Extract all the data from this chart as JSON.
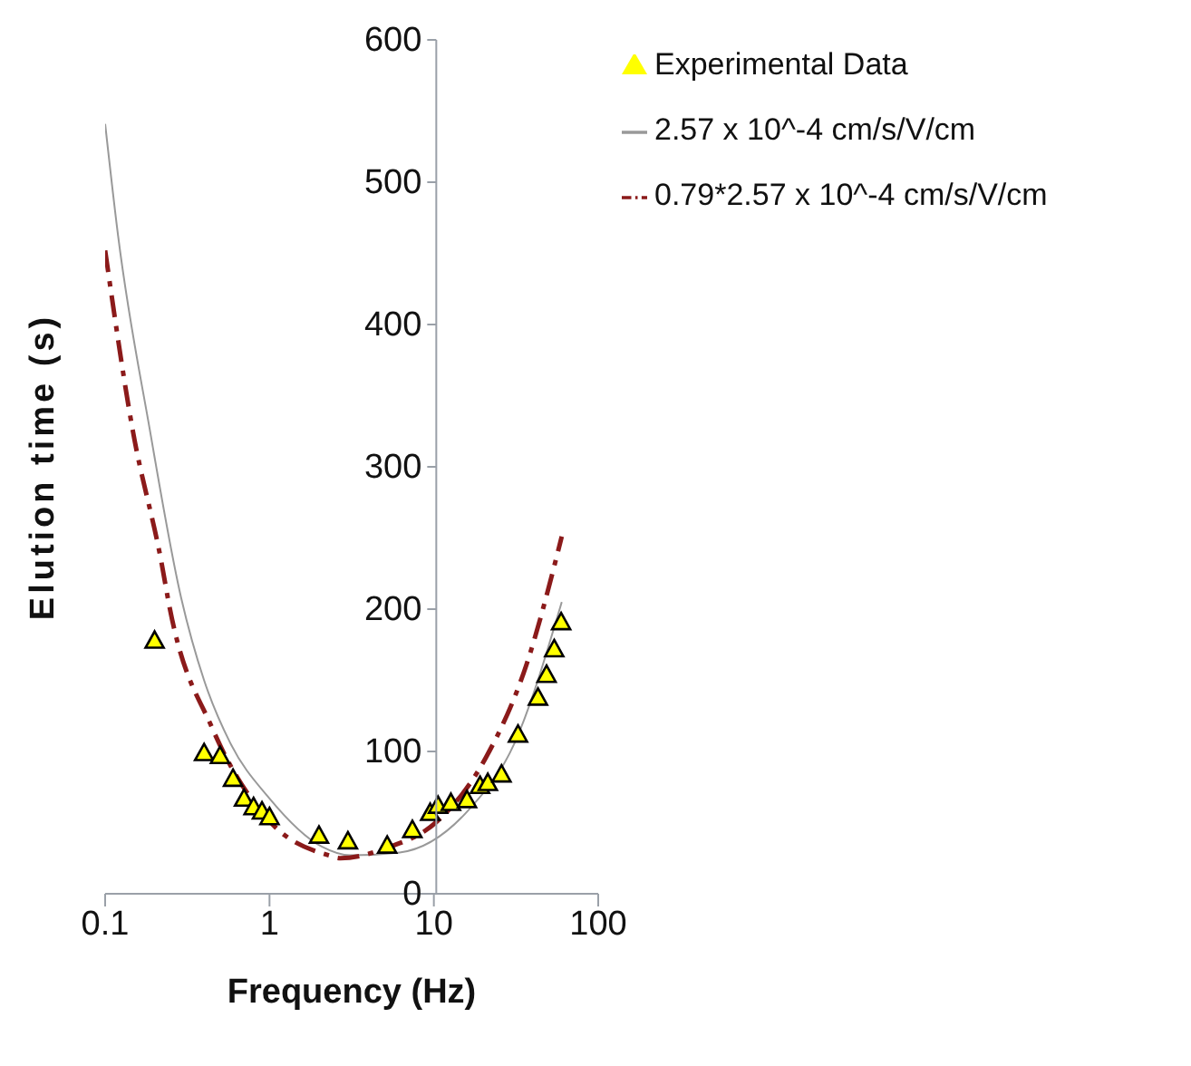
{
  "chart_data": {
    "type": "scatter",
    "xlabel": "Frequency (Hz)",
    "ylabel": "Elution time (s)",
    "log": "x",
    "xlim": [
      0.1,
      100
    ],
    "xticks": [
      0.1,
      1,
      10,
      100
    ],
    "ylim": [
      0,
      600
    ],
    "yticks": [
      0,
      100,
      200,
      300,
      400,
      500,
      600
    ],
    "legend": "top right",
    "series": [
      {
        "name": "Experimental Data",
        "marker": "triangle",
        "color": "#ffff00",
        "x": [
          0.2,
          0.4,
          0.5,
          0.6,
          0.7,
          0.8,
          0.9,
          1,
          2,
          3,
          5.2,
          7.4,
          9.5,
          10.6,
          12.7,
          15.9,
          19.1,
          21.3,
          25.8,
          32.5,
          43,
          48.5,
          54,
          59.5
        ],
        "values": [
          178,
          99,
          97,
          81,
          67,
          61,
          58,
          54,
          41,
          37,
          34,
          45,
          57,
          62,
          64,
          66,
          76,
          78,
          84,
          112,
          138,
          154,
          172,
          191
        ]
      },
      {
        "name": "2.57 x 10^-4 cm/s/V/cm",
        "type": "line",
        "marker": "none",
        "line_style": "solid",
        "color": "#999999",
        "x": [
          0.1,
          0.12,
          0.187,
          0.29,
          0.4,
          0.577,
          1,
          2.09,
          3.1,
          6.2,
          16.3,
          31,
          60
        ],
        "values": [
          541,
          462,
          326,
          208,
          150,
          106,
          67,
          33,
          27,
          29,
          59,
          106,
          205
        ]
      },
      {
        "name": "0.79*2.57 x 10^-4 cm/s/V/cm",
        "type": "line",
        "marker": "none",
        "line_style": "dashed",
        "color": "#8b1a1a",
        "x": [
          0.1,
          0.147,
          0.22,
          0.247,
          0.45,
          1,
          2.3,
          2.7,
          5.1,
          10.5,
          20.8,
          36.6,
          60
        ],
        "values": [
          452,
          326,
          233,
          201,
          116,
          51,
          27,
          25,
          32,
          51,
          96,
          161,
          251
        ]
      }
    ]
  }
}
